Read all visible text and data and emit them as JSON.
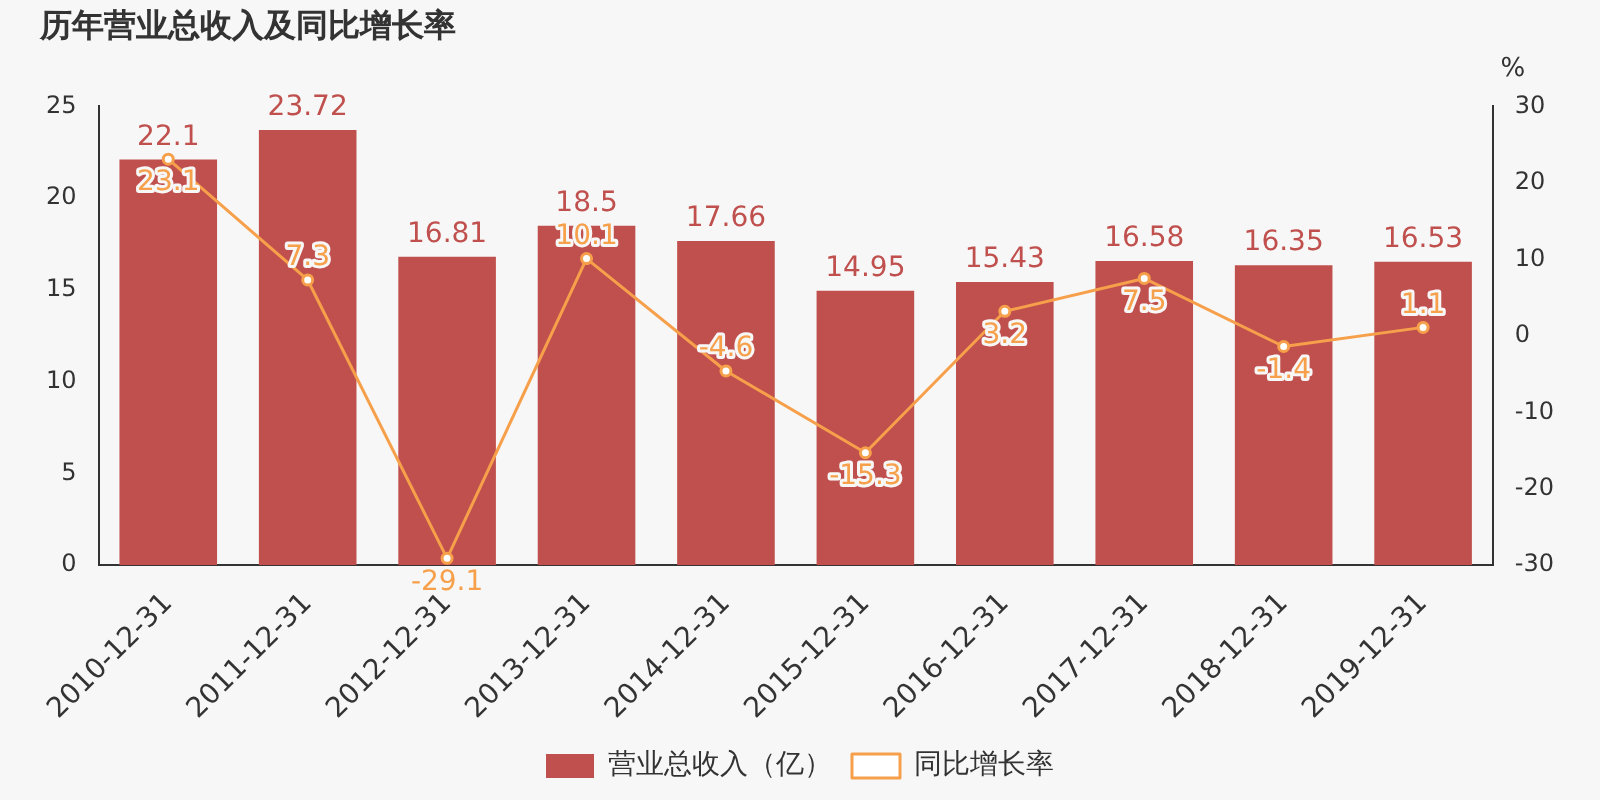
{
  "chart_data": {
    "type": "bar",
    "title": "历年营业总收入及同比增长率",
    "y2label": "%",
    "categories": [
      "2010-12-31",
      "2011-12-31",
      "2012-12-31",
      "2013-12-31",
      "2014-12-31",
      "2015-12-31",
      "2016-12-31",
      "2017-12-31",
      "2018-12-31",
      "2019-12-31"
    ],
    "series": [
      {
        "name": "营业总收入（亿）",
        "color": "#c0504d",
        "values": [
          22.1,
          23.72,
          16.81,
          18.5,
          17.66,
          14.95,
          15.43,
          16.58,
          16.35,
          16.53
        ]
      },
      {
        "name": "同比增长率",
        "type": "line",
        "axis": "y2",
        "color": "#f7a04b",
        "marker": "circle",
        "values": [
          23.1,
          7.3,
          -29.1,
          10.1,
          -4.6,
          -15.3,
          3.2,
          7.5,
          -1.4,
          1.1
        ]
      }
    ],
    "ylim": [
      0,
      25
    ],
    "yticks": [
      0,
      5,
      10,
      15,
      20,
      25
    ],
    "y2lim": [
      -30,
      30
    ],
    "y2ticks": [
      -30,
      -20,
      -10,
      0,
      10,
      20,
      30
    ],
    "grid": false,
    "legend": "bottom",
    "data_labels": true
  }
}
